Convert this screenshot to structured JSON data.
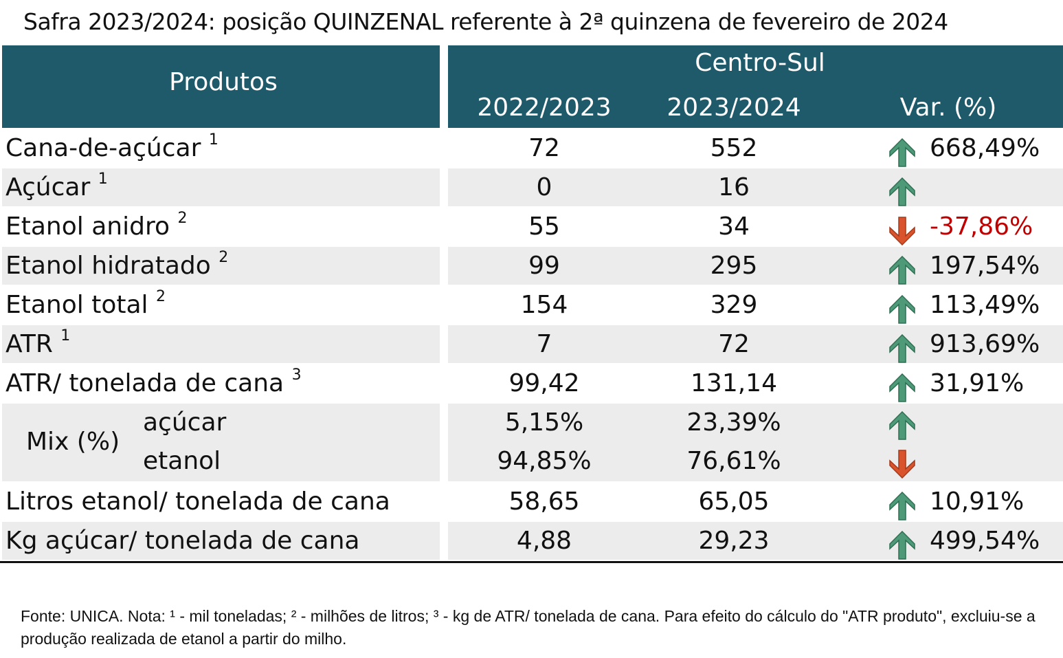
{
  "title": "Safra 2023/2024: posição QUINZENAL referente à 2ª quinzena de fevereiro de 2024",
  "header": {
    "produtos": "Produtos",
    "region": "Centro-Sul",
    "col1": "2022/2023",
    "col2": "2023/2024",
    "col3": "Var. (%)"
  },
  "colors": {
    "header_bg": "#1f5a6b",
    "shade": "#ececec",
    "up": "#4e9a78",
    "down": "#d9532c",
    "negative_text": "#c00000"
  },
  "rows": [
    {
      "label": "Cana-de-açúcar",
      "note": "1",
      "v1": "72",
      "v2": "552",
      "dir": "up",
      "var": "668,49%"
    },
    {
      "label": "Açúcar",
      "note": "1",
      "v1": "0",
      "v2": "16",
      "dir": "up",
      "var": ""
    },
    {
      "label": "Etanol anidro",
      "note": "2",
      "v1": "55",
      "v2": "34",
      "dir": "down",
      "var": "-37,86%"
    },
    {
      "label": "Etanol hidratado",
      "note": "2",
      "v1": "99",
      "v2": "295",
      "dir": "up",
      "var": "197,54%"
    },
    {
      "label": "Etanol total",
      "note": "2",
      "v1": "154",
      "v2": "329",
      "dir": "up",
      "var": "113,49%"
    },
    {
      "label": "ATR",
      "note": "1",
      "v1": "7",
      "v2": "72",
      "dir": "up",
      "var": "913,69%"
    },
    {
      "label": "ATR/ tonelada de cana",
      "note": "3",
      "v1": "99,42",
      "v2": "131,14",
      "dir": "up",
      "var": "31,91%"
    }
  ],
  "mix": {
    "label": "Mix (%)",
    "acucar": {
      "label": "açúcar",
      "v1": "5,15%",
      "v2": "23,39%",
      "dir": "up"
    },
    "etanol": {
      "label": "etanol",
      "v1": "94,85%",
      "v2": "76,61%",
      "dir": "down"
    }
  },
  "rows2": [
    {
      "label": "Litros etanol/ tonelada de cana",
      "v1": "58,65",
      "v2": "65,05",
      "dir": "up",
      "var": "10,91%"
    },
    {
      "label": "Kg açúcar/ tonelada de cana",
      "v1": "4,88",
      "v2": "29,23",
      "dir": "up",
      "var": "499,54%"
    }
  ],
  "footnote": "Fonte: UNICA. Nota: ¹ - mil toneladas; ² - milhões de litros; ³ - kg de ATR/ tonelada de cana. Para efeito do cálculo do \"ATR produto\", excluiu-se a produção realizada de etanol a partir do milho."
}
